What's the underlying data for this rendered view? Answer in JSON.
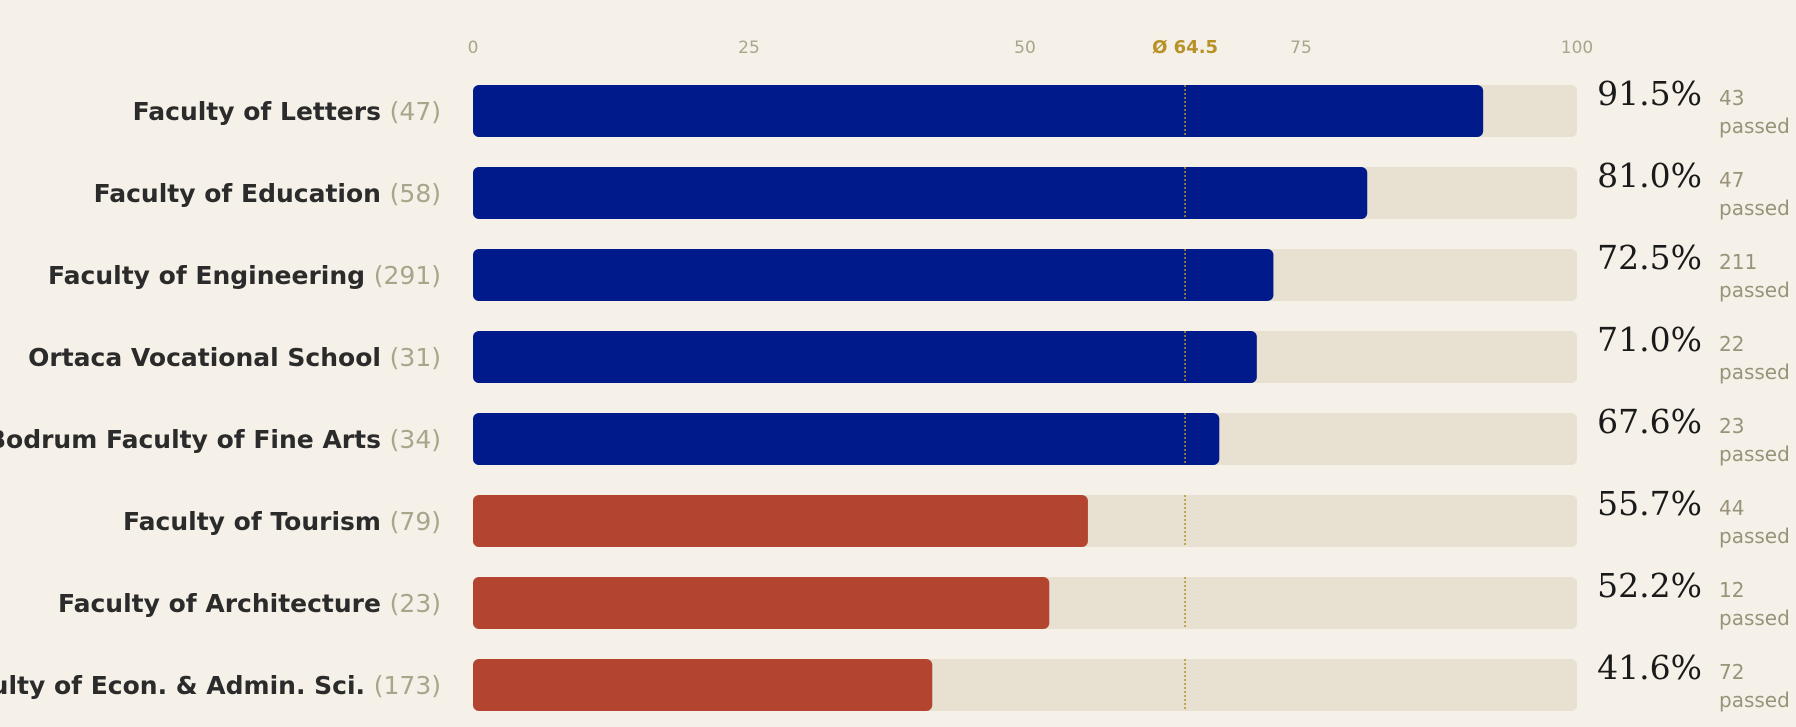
{
  "chart_data": {
    "type": "bar",
    "orientation": "horizontal",
    "xlim": [
      0,
      100
    ],
    "x_ticks": [
      0,
      25,
      50,
      75,
      100
    ],
    "average": {
      "value": 64.5,
      "label": "Ø 64.5"
    },
    "passed_label": "passed",
    "colors": {
      "above_average": "#011a8b",
      "below_average": "#b34530",
      "track": "#e8e0d0",
      "average_line": "#b8912a"
    },
    "categories": [
      {
        "name": "Faculty of Letters",
        "count": "(47)",
        "value": 91.5,
        "value_label": "91.5%",
        "passed": "43"
      },
      {
        "name": "Faculty of Education",
        "count": "(58)",
        "value": 81.0,
        "value_label": "81.0%",
        "passed": "47"
      },
      {
        "name": "Faculty of Engineering",
        "count": "(291)",
        "value": 72.5,
        "value_label": "72.5%",
        "passed": "211"
      },
      {
        "name": "Ortaca Vocational School",
        "count": "(31)",
        "value": 71.0,
        "value_label": "71.0%",
        "passed": "22"
      },
      {
        "name": "Bodrum Faculty of Fine Arts",
        "count": "(34)",
        "value": 67.6,
        "value_label": "67.6%",
        "passed": "23"
      },
      {
        "name": "Faculty of Tourism",
        "count": "(79)",
        "value": 55.7,
        "value_label": "55.7%",
        "passed": "44"
      },
      {
        "name": "Faculty of Architecture",
        "count": "(23)",
        "value": 52.2,
        "value_label": "52.2%",
        "passed": "12"
      },
      {
        "name": "Faculty of Econ. & Admin. Sci.",
        "count": "(173)",
        "value": 41.6,
        "value_label": "41.6%",
        "passed": "72"
      }
    ]
  }
}
